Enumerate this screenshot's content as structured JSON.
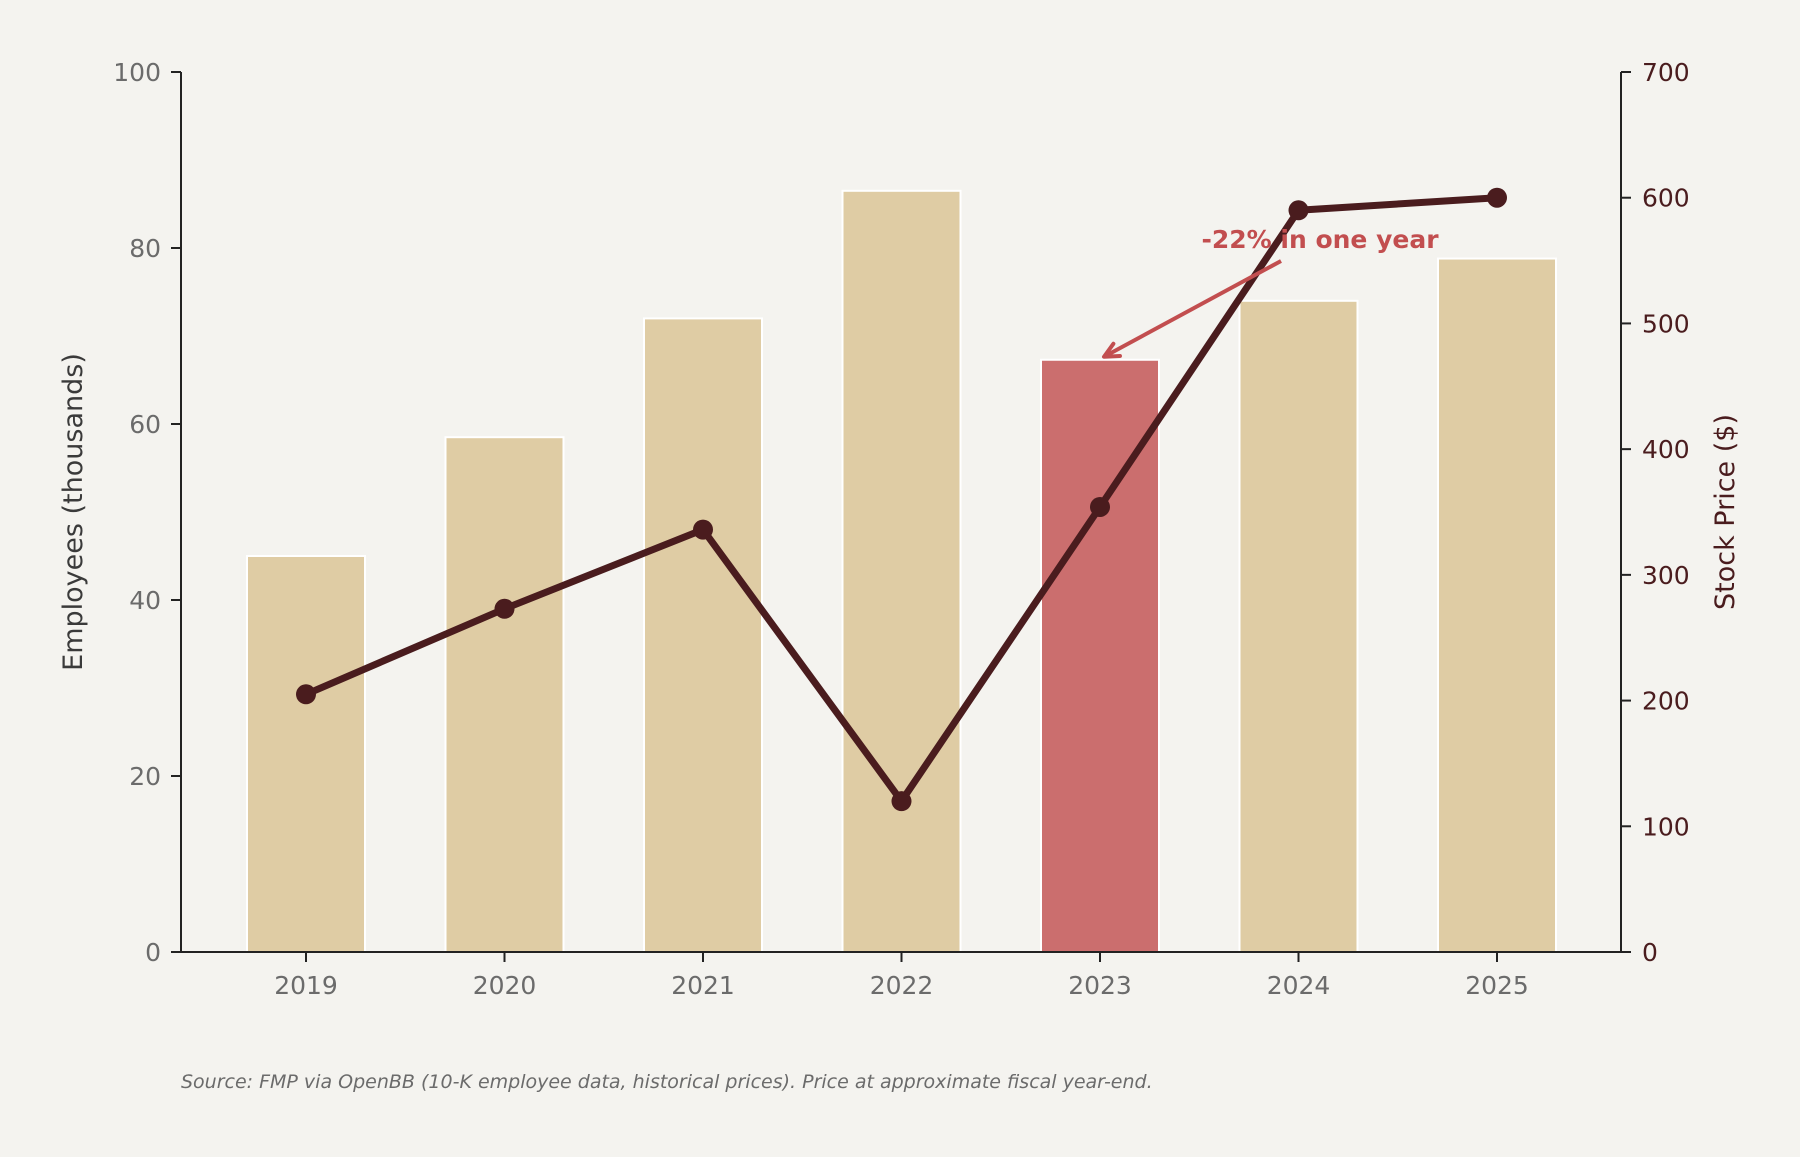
{
  "chart_data": {
    "type": "bar",
    "categories": [
      "2019",
      "2020",
      "2021",
      "2022",
      "2023",
      "2024",
      "2025"
    ],
    "series": [
      {
        "axis": "left",
        "kind": "bar",
        "values": [
          45.0,
          58.5,
          72.0,
          86.5,
          67.3,
          74.0,
          78.8
        ],
        "highlight_index": 4
      },
      {
        "axis": "right",
        "kind": "line",
        "values": [
          205,
          273,
          336,
          120,
          354,
          590,
          600
        ]
      }
    ],
    "y_left": {
      "label": "Employees (thousands)",
      "ticks": [
        "0",
        "20",
        "40",
        "60",
        "80",
        "100"
      ],
      "range": [
        0,
        100
      ]
    },
    "y_right": {
      "label": "Stock Price ($)",
      "ticks": [
        "0",
        "100",
        "200",
        "300",
        "400",
        "500",
        "600",
        "700"
      ],
      "range": [
        0,
        700
      ]
    },
    "annotation": {
      "text": "-22% in one year",
      "target_category": "2023",
      "target_value": 67.3
    },
    "source": "Source: FMP via OpenBB (10-K employee data, historical prices). Price at approximate fiscal year-end.",
    "grid": false,
    "colors": {
      "bar": "#dfcca4",
      "bar_highlight": "#cb6e6e",
      "line": "#4a1c1e",
      "annotation": "#c24e4f",
      "axis_text": "#6b6b6b",
      "right_axis_text": "#4a1c1e",
      "background": "#f4f3ef"
    }
  }
}
